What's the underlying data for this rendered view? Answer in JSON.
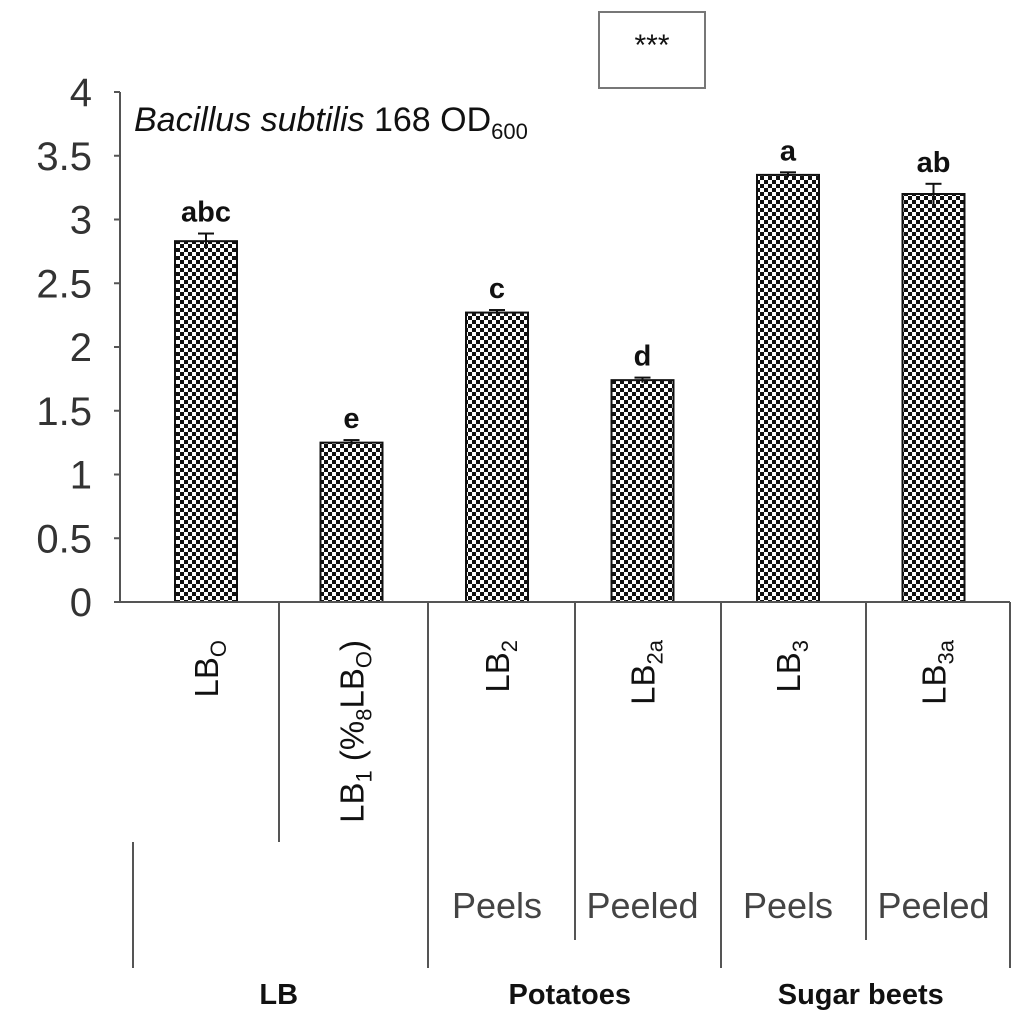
{
  "chart_data": {
    "type": "bar",
    "title": {
      "italic": "Bacillus subtilis",
      "text": "168 OD",
      "subscript": "600"
    },
    "significance_box": "***",
    "ylim": [
      0,
      4
    ],
    "yticks": [
      "0",
      "0.5",
      "1",
      "1.5",
      "2",
      "2.5",
      "3",
      "3.5",
      "4"
    ],
    "grid": false,
    "bars": [
      {
        "label": "LB",
        "sub": "O",
        "suffix": "",
        "value": 2.83,
        "error": 0.06,
        "letter": "abc",
        "row2": ""
      },
      {
        "label": "LB",
        "sub": "1",
        "suffix": " (%",
        "suffix_sub": "8",
        "suffix_tail": "LB",
        "suffix_tail_sub": "O",
        "suffix_end": ")",
        "value": 1.25,
        "error": 0.02,
        "letter": "e",
        "row2": ""
      },
      {
        "label": "LB",
        "sub": "2",
        "suffix": "",
        "value": 2.27,
        "error": 0.02,
        "letter": "c",
        "row2": "Peels"
      },
      {
        "label": "LB",
        "sub": "2a",
        "suffix": "",
        "value": 1.74,
        "error": 0.02,
        "letter": "d",
        "row2": "Peeled"
      },
      {
        "label": "LB",
        "sub": "3",
        "suffix": "",
        "value": 3.35,
        "error": 0.02,
        "letter": "a",
        "row2": "Peels"
      },
      {
        "label": "LB",
        "sub": "3a",
        "suffix": "",
        "value": 3.2,
        "error": 0.08,
        "letter": "ab",
        "row2": "Peeled"
      }
    ],
    "groups": [
      {
        "name": "LB",
        "bars": [
          0,
          1
        ]
      },
      {
        "name": "Potatoes",
        "bars": [
          2,
          3
        ]
      },
      {
        "name": "Sugar beets",
        "bars": [
          4,
          5
        ]
      }
    ],
    "colors": {
      "bar_fill": "#111111",
      "bar_checker": "#ffffff",
      "axis": "#555555",
      "text": "#111111"
    }
  }
}
